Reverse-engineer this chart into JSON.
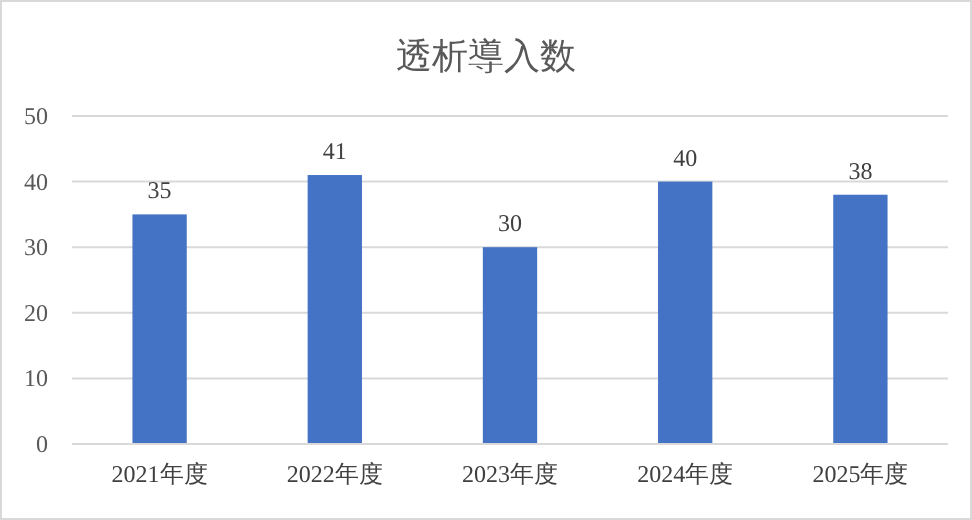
{
  "chart_data": {
    "type": "bar",
    "title": "透析導入数",
    "categories": [
      "2021年度",
      "2022年度",
      "2023年度",
      "2024年度",
      "2025年度"
    ],
    "values": [
      35,
      41,
      30,
      40,
      38
    ],
    "color": "#4472c4",
    "ylim": [
      0,
      50
    ],
    "yticks": [
      0,
      10,
      20,
      30,
      40,
      50
    ],
    "grid": "y",
    "data_labels": true
  }
}
